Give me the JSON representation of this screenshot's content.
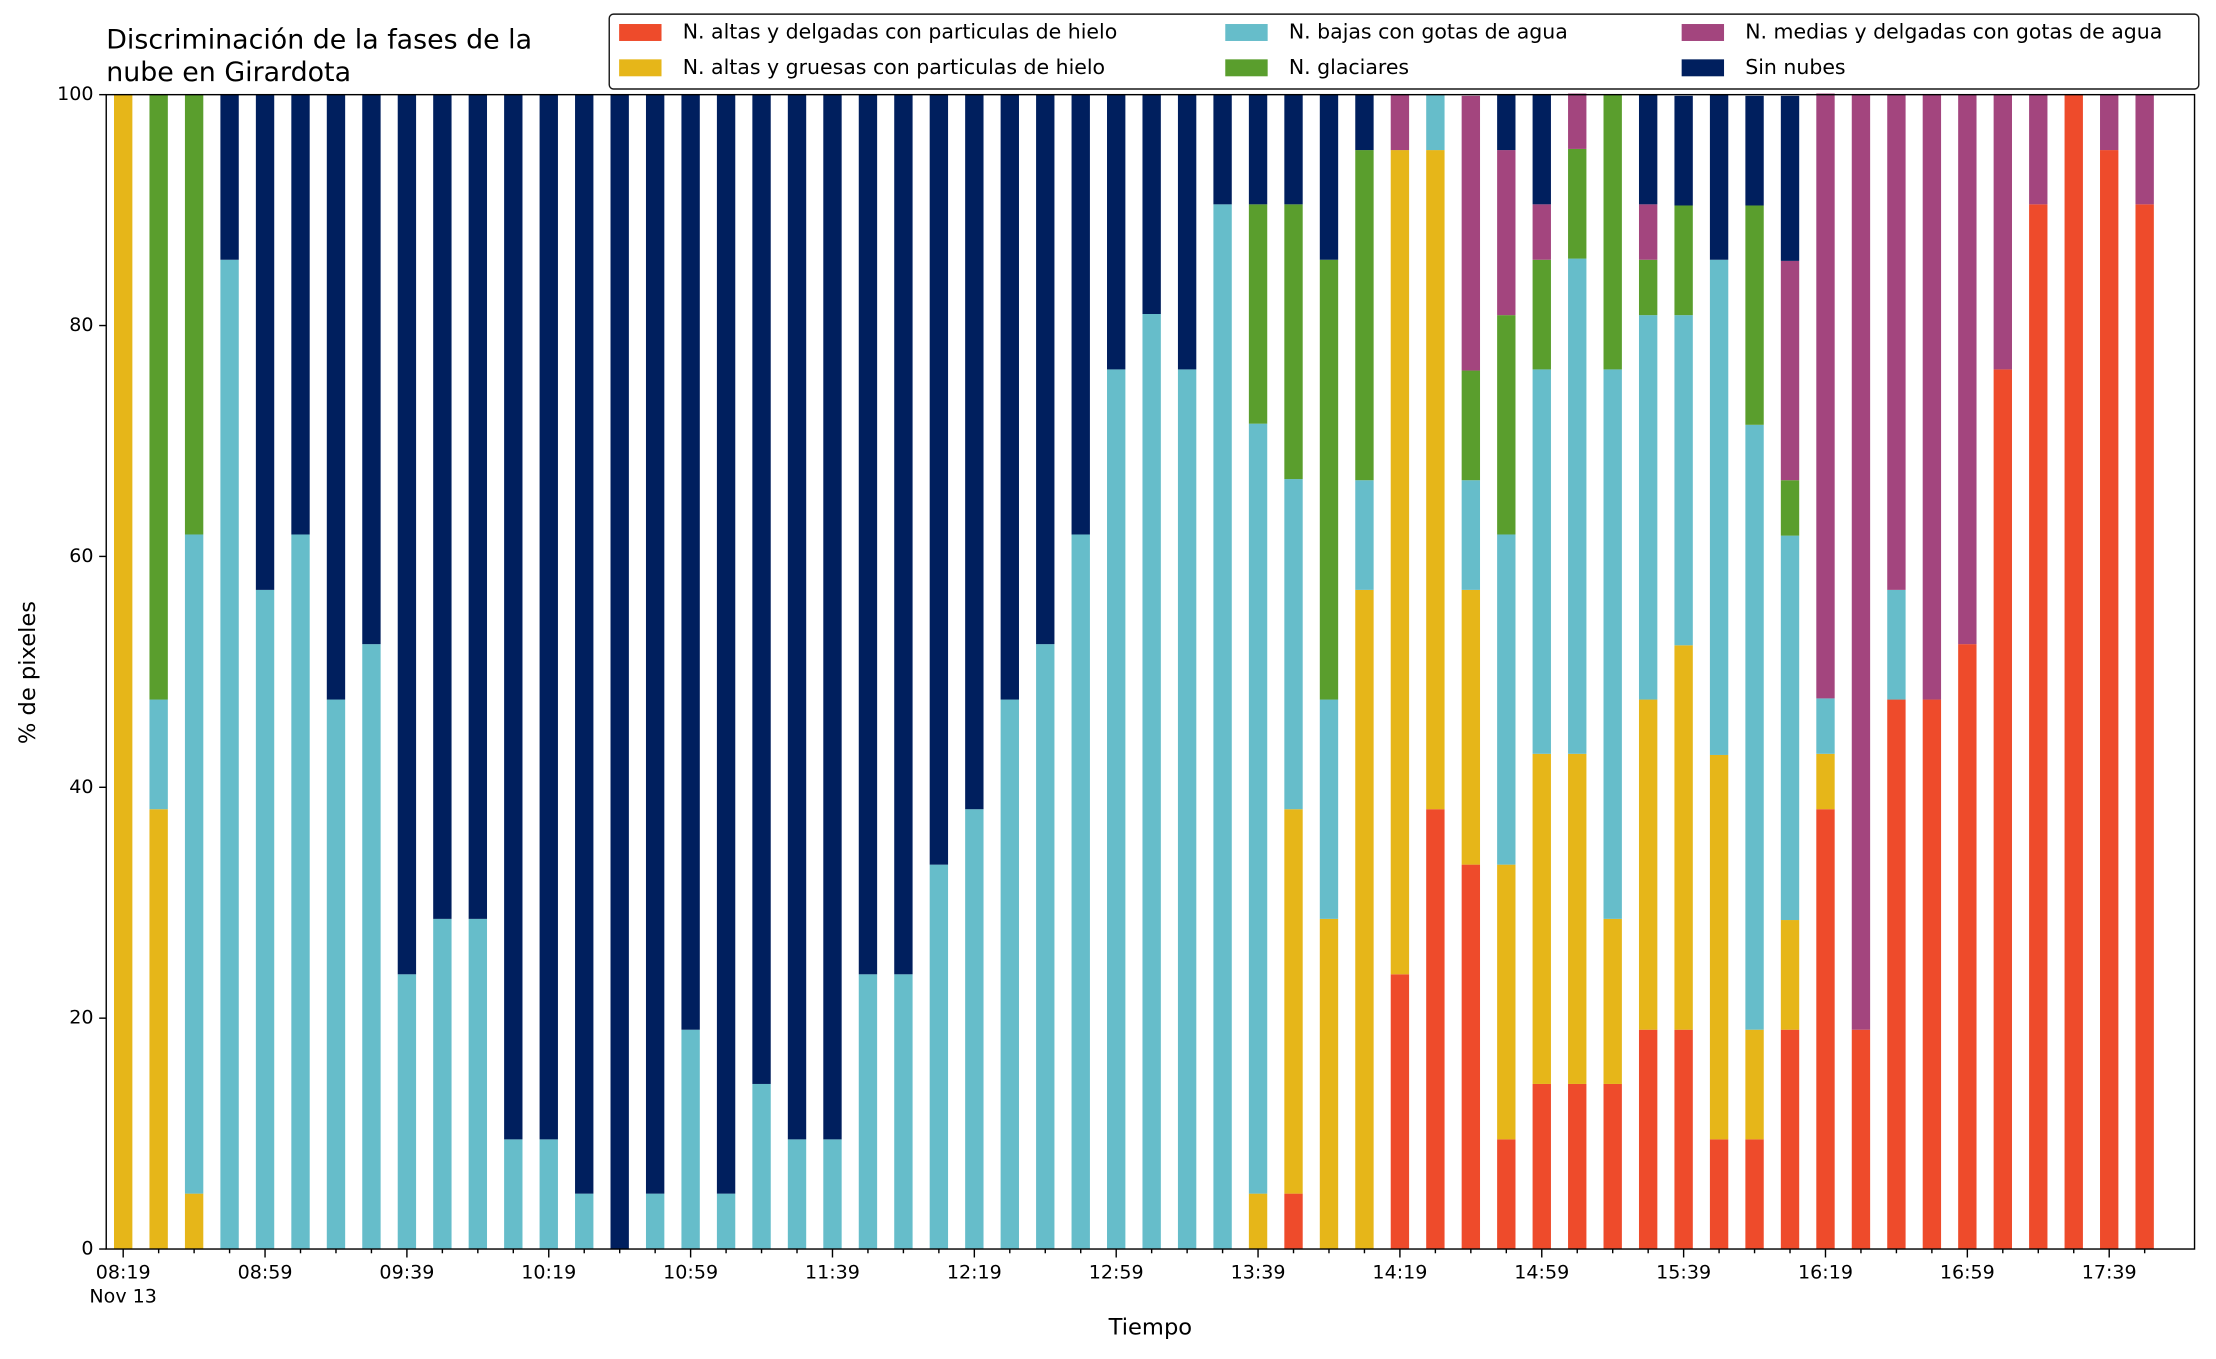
{
  "chart_data": {
    "type": "stacked_bar",
    "title": [
      "Discriminación de la fases de la",
      "nube en Girardota"
    ],
    "x_label": "Tiempo",
    "y_label": "% de pixeles",
    "x_sublabel": "Nov 13",
    "categories": [
      "08:19",
      null,
      null,
      null,
      "08:59",
      null,
      null,
      null,
      "09:39",
      null,
      null,
      null,
      "10:19",
      null,
      null,
      null,
      "10:59",
      null,
      null,
      null,
      "11:39",
      null,
      null,
      null,
      "12:19",
      null,
      null,
      null,
      "12:59",
      null,
      null,
      null,
      "13:39",
      null,
      null,
      null,
      "14:19",
      null,
      null,
      null,
      "14:59",
      null,
      null,
      null,
      "15:39",
      null,
      null,
      null,
      "16:19",
      null,
      null,
      null,
      "16:59",
      null,
      null,
      null,
      "17:39",
      null
    ],
    "ylim": [
      0,
      100
    ],
    "yticks": [
      0,
      20,
      40,
      60,
      80,
      100
    ],
    "legend": "upper right",
    "series": [
      {
        "name": "N. altas y delgadas con particulas de hielo",
        "color": "#ee4b2b",
        "values": [
          0,
          0,
          0,
          0,
          0,
          0,
          0,
          0,
          0,
          0,
          0,
          0,
          0,
          0,
          0,
          0,
          0,
          0,
          0,
          0,
          0,
          0,
          0,
          0,
          0,
          0,
          0,
          0,
          0,
          0,
          0,
          0,
          0,
          4.8,
          0,
          0,
          23.8,
          38.1,
          33.3,
          9.5,
          14.3,
          14.3,
          14.3,
          19,
          19,
          9.5,
          9.5,
          19,
          38.1,
          19,
          47.6,
          47.6,
          52.4,
          76.2,
          90.5,
          100,
          95.2,
          90.5
        ]
      },
      {
        "name": "N. altas y gruesas con particulas de hielo",
        "color": "#e6b619",
        "values": [
          100,
          38.1,
          4.8,
          0,
          0,
          0,
          0,
          0,
          0,
          0,
          0,
          0,
          0,
          0,
          0,
          0,
          0,
          0,
          0,
          0,
          0,
          0,
          0,
          0,
          0,
          0,
          0,
          0,
          0,
          0,
          0,
          0,
          4.8,
          33.3,
          28.6,
          57.1,
          71.4,
          57.1,
          23.8,
          23.8,
          28.6,
          28.6,
          14.3,
          28.6,
          33.3,
          33.3,
          9.5,
          9.5,
          4.8,
          0,
          0,
          0,
          0,
          0,
          0,
          0,
          0,
          0
        ]
      },
      {
        "name": "N. bajas con gotas de agua",
        "color": "#66bdca",
        "values": [
          0,
          9.5,
          57.1,
          85.7,
          57.1,
          61.9,
          47.6,
          52.4,
          23.8,
          28.6,
          28.6,
          9.5,
          9.5,
          4.8,
          0,
          4.8,
          19,
          4.8,
          14.3,
          9.5,
          9.5,
          23.8,
          23.8,
          33.3,
          38.1,
          47.6,
          52.4,
          61.9,
          76.2,
          81,
          76.2,
          90.5,
          66.7,
          28.6,
          19,
          9.5,
          0,
          4.8,
          9.5,
          28.6,
          33.3,
          42.9,
          47.6,
          33.3,
          28.6,
          42.9,
          52.4,
          33.3,
          4.8,
          0,
          9.5,
          0,
          0,
          0,
          0,
          0,
          0,
          0
        ]
      },
      {
        "name": "N. glaciares",
        "color": "#5a9e2d",
        "values": [
          0,
          52.4,
          38.1,
          0,
          0,
          0,
          0,
          0,
          0,
          0,
          0,
          0,
          0,
          0,
          0,
          0,
          0,
          0,
          0,
          0,
          0,
          0,
          0,
          0,
          0,
          0,
          0,
          0,
          0,
          0,
          0,
          0,
          19,
          23.8,
          38.1,
          28.6,
          0,
          0,
          9.5,
          19,
          9.5,
          9.5,
          23.8,
          4.8,
          9.5,
          0,
          19,
          4.8,
          0,
          0,
          0,
          0,
          0,
          0,
          0,
          0,
          0,
          0
        ]
      },
      {
        "name": "N. medias y delgadas con gotas de agua",
        "color": "#a3457e",
        "values": [
          0,
          0,
          0,
          0,
          0,
          0,
          0,
          0,
          0,
          0,
          0,
          0,
          0,
          0,
          0,
          0,
          0,
          0,
          0,
          0,
          0,
          0,
          0,
          0,
          0,
          0,
          0,
          0,
          0,
          0,
          0,
          0,
          0,
          0,
          0,
          0,
          4.8,
          0,
          23.8,
          14.3,
          4.8,
          4.8,
          0,
          4.8,
          0,
          0,
          0,
          19,
          52.4,
          81,
          42.9,
          52.4,
          47.6,
          23.8,
          9.5,
          0,
          4.8,
          9.5
        ]
      },
      {
        "name": "Sin nubes",
        "color": "#001f5e",
        "values": [
          0,
          0,
          0,
          14.3,
          42.9,
          38.1,
          52.4,
          47.6,
          76.2,
          71.4,
          71.4,
          90.5,
          90.5,
          95.2,
          100,
          95.2,
          81,
          95.2,
          85.7,
          90.5,
          90.5,
          76.2,
          76.2,
          66.7,
          61.9,
          52.4,
          47.6,
          38.1,
          23.8,
          19,
          23.8,
          9.5,
          9.5,
          9.5,
          14.3,
          4.8,
          0,
          0,
          0,
          4.8,
          9.5,
          0,
          0,
          9.5,
          9.5,
          14.3,
          9.5,
          14.3,
          0,
          0,
          0,
          0,
          0,
          0,
          0,
          0,
          0,
          0
        ]
      }
    ]
  }
}
